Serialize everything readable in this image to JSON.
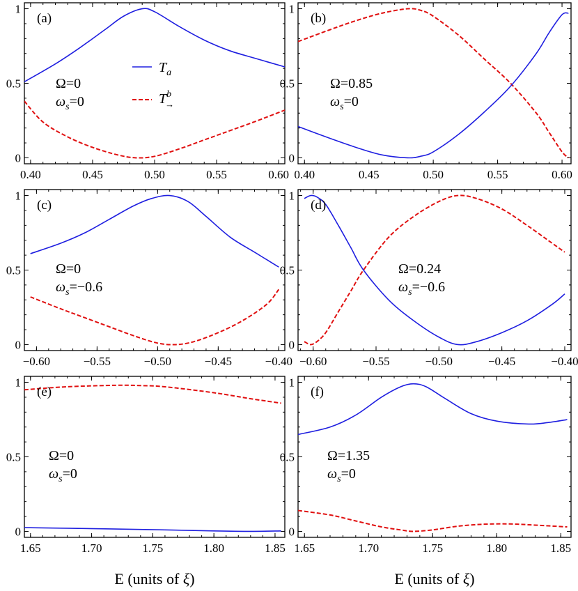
{
  "figure": {
    "xlabel_prefix": "E (units of ",
    "xlabel_symbol": "ξ",
    "xlabel_suffix": ")"
  },
  "legend": {
    "series_a_label": "T",
    "series_a_sub": "a",
    "series_b_label": "T",
    "series_b_sup": "b",
    "series_b_sub": "→",
    "series_a_color": "#1f1fe0",
    "series_b_color": "#e01010",
    "series_b_style": "dashed"
  },
  "chart_data": [
    {
      "panel": "(a)",
      "type": "line",
      "omega_text": "Ω=0",
      "omega_s_text": "=0",
      "xlim": [
        0.395,
        0.605
      ],
      "ylim": [
        -0.04,
        1.04
      ],
      "xticks": [
        "0.40",
        "0.45",
        "0.50",
        "0.55",
        "0.60"
      ],
      "xtick_values": [
        0.4,
        0.45,
        0.5,
        0.55,
        0.6
      ],
      "yticks": [
        "0",
        "0.5",
        "1"
      ],
      "ytick_values": [
        0,
        0.5,
        1
      ],
      "series": [
        {
          "key": "Ta",
          "x": [
            0.395,
            0.42,
            0.44,
            0.46,
            0.475,
            0.49,
            0.5,
            0.52,
            0.54,
            0.56,
            0.58,
            0.605
          ],
          "y": [
            0.51,
            0.63,
            0.74,
            0.86,
            0.95,
            1.0,
            0.98,
            0.88,
            0.79,
            0.72,
            0.67,
            0.61
          ]
        },
        {
          "key": "Tb",
          "x": [
            0.395,
            0.41,
            0.43,
            0.45,
            0.47,
            0.485,
            0.5,
            0.52,
            0.54,
            0.56,
            0.58,
            0.605
          ],
          "y": [
            0.38,
            0.24,
            0.14,
            0.07,
            0.02,
            0.0,
            0.01,
            0.06,
            0.12,
            0.18,
            0.24,
            0.32
          ]
        }
      ],
      "show_legend": true
    },
    {
      "panel": "(b)",
      "type": "line",
      "omega_text": "Ω=0.85",
      "omega_s_text": "=0",
      "xlim": [
        0.395,
        0.607
      ],
      "ylim": [
        -0.04,
        1.04
      ],
      "xticks": [
        "0.40",
        "0.45",
        "0.50",
        "0.55",
        "0.60"
      ],
      "xtick_values": [
        0.4,
        0.45,
        0.5,
        0.55,
        0.6
      ],
      "yticks": [
        "0",
        "0.5",
        "1"
      ],
      "ytick_values": [
        0,
        0.5,
        1
      ],
      "series": [
        {
          "key": "Ta",
          "x": [
            0.395,
            0.42,
            0.44,
            0.46,
            0.48,
            0.49,
            0.5,
            0.52,
            0.54,
            0.56,
            0.58,
            0.59,
            0.6,
            0.605
          ],
          "y": [
            0.21,
            0.13,
            0.07,
            0.02,
            0.0,
            0.01,
            0.04,
            0.16,
            0.31,
            0.48,
            0.7,
            0.84,
            0.96,
            0.97
          ]
        },
        {
          "key": "Tb",
          "x": [
            0.395,
            0.42,
            0.44,
            0.46,
            0.48,
            0.49,
            0.5,
            0.52,
            0.54,
            0.56,
            0.58,
            0.59,
            0.6,
            0.605
          ],
          "y": [
            0.78,
            0.86,
            0.92,
            0.97,
            1.0,
            0.99,
            0.95,
            0.82,
            0.66,
            0.5,
            0.3,
            0.17,
            0.04,
            0.0
          ]
        }
      ],
      "show_legend": false
    },
    {
      "panel": "(c)",
      "type": "line",
      "omega_text": "Ω=0",
      "omega_s_text": "=−0.6",
      "xlim": [
        -0.61,
        -0.395
      ],
      "ylim": [
        -0.04,
        1.04
      ],
      "xticks": [
        "−0.60",
        "−0.55",
        "−0.50",
        "−0.45",
        "−0.40"
      ],
      "xtick_values": [
        -0.6,
        -0.55,
        -0.5,
        -0.45,
        -0.4
      ],
      "yticks": [
        "0",
        "0.5",
        "1"
      ],
      "ytick_values": [
        0,
        0.5,
        1
      ],
      "series": [
        {
          "key": "Ta",
          "x": [
            -0.605,
            -0.58,
            -0.56,
            -0.54,
            -0.52,
            -0.505,
            -0.49,
            -0.475,
            -0.46,
            -0.44,
            -0.42,
            -0.4
          ],
          "y": [
            0.61,
            0.68,
            0.75,
            0.84,
            0.93,
            0.98,
            1.0,
            0.96,
            0.86,
            0.72,
            0.62,
            0.52
          ]
        },
        {
          "key": "Tb",
          "x": [
            -0.605,
            -0.58,
            -0.56,
            -0.54,
            -0.52,
            -0.5,
            -0.485,
            -0.47,
            -0.45,
            -0.43,
            -0.41,
            -0.4
          ],
          "y": [
            0.32,
            0.24,
            0.18,
            0.12,
            0.06,
            0.01,
            0.0,
            0.02,
            0.08,
            0.16,
            0.27,
            0.37
          ]
        }
      ],
      "show_legend": false
    },
    {
      "panel": "(d)",
      "type": "line",
      "omega_text": "Ω=0.24",
      "omega_s_text": "=−0.6",
      "xlim": [
        -0.612,
        -0.395
      ],
      "ylim": [
        -0.04,
        1.04
      ],
      "xticks": [
        "−0.60",
        "−0.55",
        "−0.50",
        "−0.45",
        "−0.40"
      ],
      "xtick_values": [
        -0.6,
        -0.55,
        -0.5,
        -0.45,
        -0.4
      ],
      "yticks": [
        "0",
        "0.5",
        "1"
      ],
      "ytick_values": [
        0,
        0.5,
        1
      ],
      "series": [
        {
          "key": "Ta",
          "x": [
            -0.607,
            -0.602,
            -0.597,
            -0.59,
            -0.58,
            -0.57,
            -0.56,
            -0.54,
            -0.52,
            -0.5,
            -0.485,
            -0.47,
            -0.45,
            -0.43,
            -0.41,
            -0.4
          ],
          "y": [
            0.98,
            1.0,
            0.99,
            0.94,
            0.8,
            0.65,
            0.5,
            0.3,
            0.16,
            0.05,
            0.0,
            0.02,
            0.08,
            0.16,
            0.27,
            0.34
          ]
        },
        {
          "key": "Tb",
          "x": [
            -0.607,
            -0.602,
            -0.597,
            -0.59,
            -0.58,
            -0.57,
            -0.56,
            -0.54,
            -0.52,
            -0.5,
            -0.485,
            -0.47,
            -0.45,
            -0.43,
            -0.41,
            -0.4
          ],
          "y": [
            0.02,
            0.0,
            0.02,
            0.08,
            0.22,
            0.36,
            0.5,
            0.72,
            0.86,
            0.96,
            1.0,
            0.98,
            0.91,
            0.8,
            0.68,
            0.62
          ]
        }
      ],
      "show_legend": false
    },
    {
      "panel": "(e)",
      "type": "line",
      "omega_text": "Ω=0",
      "omega_s_text": "=0",
      "xlim": [
        1.645,
        1.858
      ],
      "ylim": [
        -0.04,
        1.04
      ],
      "xticks": [
        "1.65",
        "1.70",
        "1.75",
        "1.80",
        "1.85"
      ],
      "xtick_values": [
        1.65,
        1.7,
        1.75,
        1.8,
        1.85
      ],
      "yticks": [
        "0",
        "0.5",
        "1"
      ],
      "ytick_values": [
        0,
        0.5,
        1
      ],
      "series": [
        {
          "key": "Ta",
          "x": [
            1.645,
            1.68,
            1.72,
            1.76,
            1.8,
            1.83,
            1.855
          ],
          "y": [
            0.025,
            0.021,
            0.016,
            0.01,
            0.003,
            0.0,
            0.003
          ]
        },
        {
          "key": "Tb",
          "x": [
            1.645,
            1.68,
            1.72,
            1.74,
            1.76,
            1.8,
            1.83,
            1.855
          ],
          "y": [
            0.95,
            0.97,
            0.98,
            0.978,
            0.97,
            0.93,
            0.89,
            0.86
          ]
        }
      ],
      "show_legend": false
    },
    {
      "panel": "(f)",
      "type": "line",
      "omega_text": "Ω=1.35",
      "omega_s_text": "=0",
      "xlim": [
        1.645,
        1.858
      ],
      "ylim": [
        -0.04,
        1.04
      ],
      "xticks": [
        "1.65",
        "1.70",
        "1.75",
        "1.80",
        "1.85"
      ],
      "xtick_values": [
        1.65,
        1.7,
        1.75,
        1.8,
        1.85
      ],
      "yticks": [
        "0",
        "0.5",
        "1"
      ],
      "ytick_values": [
        0,
        0.5,
        1
      ],
      "series": [
        {
          "key": "Ta",
          "x": [
            1.645,
            1.67,
            1.69,
            1.71,
            1.725,
            1.735,
            1.745,
            1.76,
            1.78,
            1.8,
            1.825,
            1.84,
            1.855
          ],
          "y": [
            0.65,
            0.7,
            0.78,
            0.9,
            0.97,
            0.99,
            0.97,
            0.89,
            0.79,
            0.74,
            0.72,
            0.73,
            0.75
          ]
        },
        {
          "key": "Tb",
          "x": [
            1.645,
            1.67,
            1.69,
            1.71,
            1.725,
            1.735,
            1.75,
            1.77,
            1.79,
            1.81,
            1.83,
            1.855
          ],
          "y": [
            0.14,
            0.11,
            0.07,
            0.03,
            0.01,
            0.0,
            0.01,
            0.035,
            0.048,
            0.05,
            0.042,
            0.03
          ]
        }
      ],
      "show_legend": false
    }
  ]
}
